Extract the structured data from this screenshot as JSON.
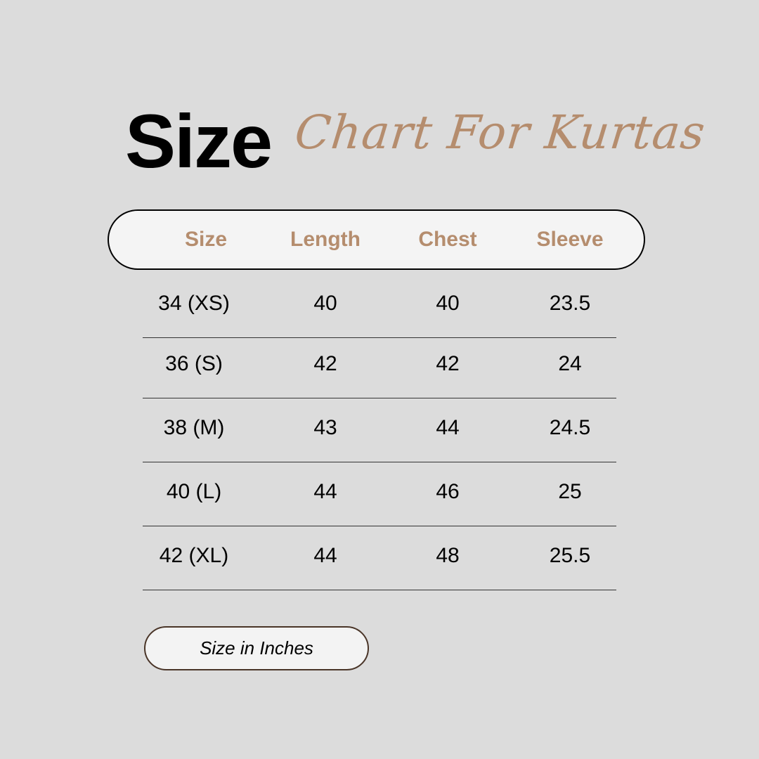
{
  "title": {
    "bold": "Size",
    "script": "Chart For Kurtas"
  },
  "colors": {
    "background": "#dcdcdc",
    "accent": "#b58d6e",
    "header_bg": "#f4f4f4"
  },
  "table": {
    "headers": [
      "Size",
      "Length",
      "Chest",
      "Sleeve"
    ],
    "rows": [
      [
        "34 (XS)",
        "40",
        "40",
        "23.5"
      ],
      [
        "36 (S)",
        "42",
        "42",
        "24"
      ],
      [
        "38 (M)",
        "43",
        "44",
        "24.5"
      ],
      [
        "40 (L)",
        "44",
        "46",
        "25"
      ],
      [
        "42 (XL)",
        "44",
        "48",
        "25.5"
      ]
    ]
  },
  "note": "Size in Inches"
}
